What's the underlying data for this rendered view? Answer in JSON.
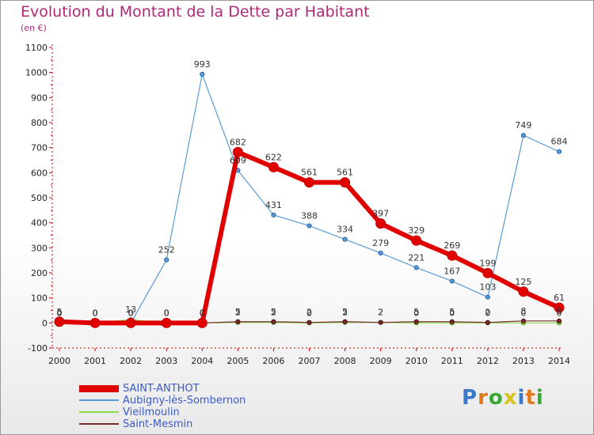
{
  "title": "Evolution du Montant de la Dette par Habitant",
  "subtitle": "(en €)",
  "brand": "Proxiti",
  "colors": {
    "title": "#b0287a",
    "legend_text": "#3b5cc8",
    "axis": "#cc0000"
  },
  "chart_data": {
    "type": "line",
    "title": "Evolution du Montant de la Dette par Habitant",
    "ylabel": "(en €)",
    "xlabel": "",
    "x": [
      "2000",
      "2001",
      "2002",
      "2003",
      "2004",
      "2005",
      "2006",
      "2007",
      "2008",
      "2009",
      "2010",
      "2011",
      "2012",
      "2013",
      "2014"
    ],
    "ylim": [
      -100,
      1100
    ],
    "yticks": [
      -100,
      0,
      100,
      200,
      300,
      400,
      500,
      600,
      700,
      800,
      900,
      1000,
      1100
    ],
    "grid": false,
    "legend_position": "bottom-left",
    "series": [
      {
        "name": "SAINT-ANTHOT",
        "color": "#e00000",
        "values": [
          5,
          0,
          0,
          0,
          0,
          682,
          622,
          561,
          561,
          397,
          329,
          269,
          199,
          125,
          61
        ],
        "labels": [
          "5",
          "0",
          "0",
          "0",
          "0",
          "682",
          "622",
          "561",
          "561",
          "397",
          "329",
          "269",
          "199",
          "125",
          "61"
        ]
      },
      {
        "name": "Aubigny-lès-Sombernon",
        "color": "#5b9bd5",
        "values": [
          0,
          0,
          0,
          252,
          993,
          609,
          431,
          388,
          334,
          279,
          221,
          167,
          103,
          749,
          684
        ],
        "labels": [
          "0",
          "0",
          "0",
          "252",
          "993",
          "609",
          "431",
          "388",
          "334",
          "279",
          "221",
          "167",
          "103",
          "749",
          "684"
        ]
      },
      {
        "name": "Vieilmoulin",
        "color": "#88dd44",
        "values": [
          0,
          0,
          13,
          0,
          0,
          2,
          2,
          0,
          2,
          2,
          0,
          0,
          0,
          0,
          0
        ],
        "labels": [
          "0",
          "0",
          "13",
          "0",
          "0",
          "2",
          "2",
          "0",
          "2",
          "2",
          "0",
          "0",
          "0",
          "0",
          "0"
        ]
      },
      {
        "name": "Saint-Mesmin",
        "color": "#7a2a2a",
        "values": [
          0,
          0,
          0,
          0,
          0,
          5,
          5,
          2,
          5,
          2,
          5,
          5,
          2,
          8,
          8
        ],
        "labels": [
          "0",
          "0",
          "0",
          "0",
          "0",
          "5",
          "5",
          "2",
          "5",
          "2",
          "5",
          "5",
          "2",
          "8",
          "8"
        ]
      }
    ]
  }
}
